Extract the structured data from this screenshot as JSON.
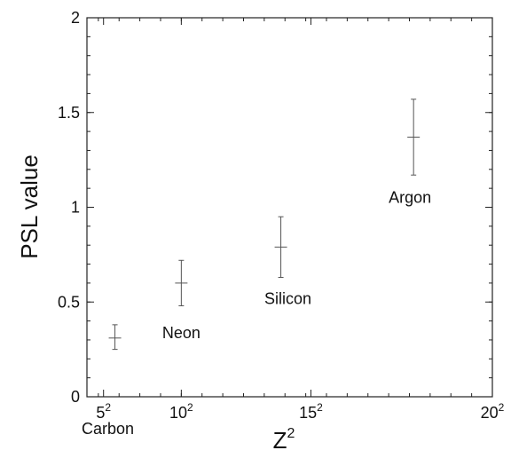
{
  "chart_data": {
    "type": "scatter",
    "title": "",
    "xlabel_base": "Z",
    "xlabel_sup": "2",
    "ylabel": "PSL value",
    "xscale": "squared",
    "xlim": [
      3,
      20
    ],
    "ylim": [
      0,
      2
    ],
    "x_ticks": [
      {
        "value": 5,
        "base": "5",
        "sup": "2"
      },
      {
        "value": 10,
        "base": "10",
        "sup": "2"
      },
      {
        "value": 15,
        "base": "15",
        "sup": "2"
      },
      {
        "value": 20,
        "base": "20",
        "sup": "2"
      }
    ],
    "y_ticks": [
      {
        "value": 0,
        "label": "0"
      },
      {
        "value": 0.5,
        "label": "0.5"
      },
      {
        "value": 1,
        "label": "1"
      },
      {
        "value": 1.5,
        "label": "1.5"
      },
      {
        "value": 2,
        "label": "2"
      }
    ],
    "points": [
      {
        "label": "Carbon",
        "z": 6,
        "y": 0.31,
        "y_low": 0.25,
        "y_high": 0.38
      },
      {
        "label": "Neon",
        "z": 10,
        "y": 0.6,
        "y_low": 0.48,
        "y_high": 0.72
      },
      {
        "label": "Silicon",
        "z": 14,
        "y": 0.79,
        "y_low": 0.63,
        "y_high": 0.95
      },
      {
        "label": "Argon",
        "z": 18,
        "y": 1.37,
        "y_low": 1.17,
        "y_high": 1.57
      }
    ],
    "grid": false,
    "legend": "none"
  }
}
